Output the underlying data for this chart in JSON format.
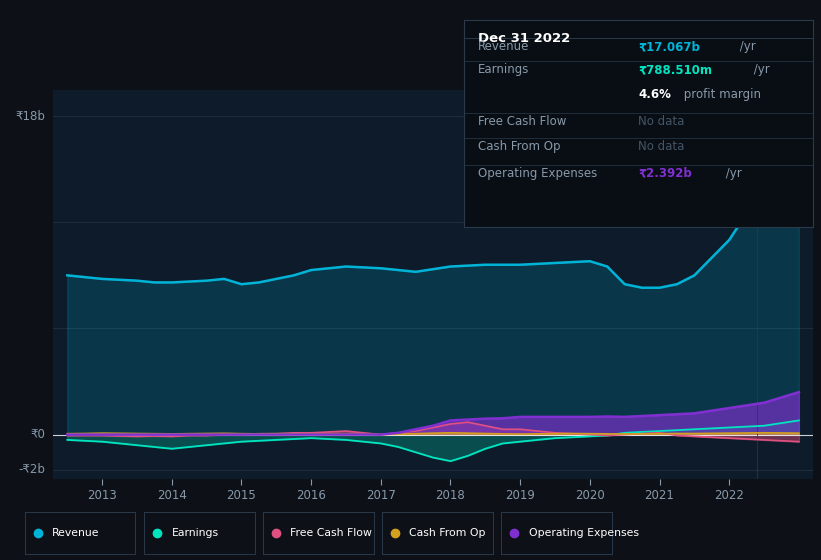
{
  "bg_color": "#0d1117",
  "chart_bg": "#0d1b2a",
  "years_x": [
    2012.5,
    2012.75,
    2013,
    2013.25,
    2013.5,
    2013.75,
    2014,
    2014.25,
    2014.5,
    2014.75,
    2015,
    2015.25,
    2015.5,
    2015.75,
    2016,
    2016.25,
    2016.5,
    2016.75,
    2017,
    2017.25,
    2017.5,
    2017.75,
    2018,
    2018.25,
    2018.5,
    2018.75,
    2019,
    2019.25,
    2019.5,
    2019.75,
    2020,
    2020.25,
    2020.5,
    2020.75,
    2021,
    2021.25,
    2021.5,
    2021.75,
    2022,
    2022.25,
    2022.5,
    2022.75,
    2023.0
  ],
  "revenue": [
    9.0,
    8.9,
    8.8,
    8.75,
    8.7,
    8.6,
    8.6,
    8.65,
    8.7,
    8.8,
    8.5,
    8.6,
    8.8,
    9.0,
    9.3,
    9.4,
    9.5,
    9.45,
    9.4,
    9.3,
    9.2,
    9.35,
    9.5,
    9.55,
    9.6,
    9.6,
    9.6,
    9.65,
    9.7,
    9.75,
    9.8,
    9.5,
    8.5,
    8.3,
    8.3,
    8.5,
    9.0,
    10.0,
    11.0,
    12.5,
    14.0,
    16.0,
    17.2
  ],
  "earnings": [
    -0.3,
    -0.35,
    -0.4,
    -0.5,
    -0.6,
    -0.7,
    -0.8,
    -0.7,
    -0.6,
    -0.5,
    -0.4,
    -0.35,
    -0.3,
    -0.25,
    -0.2,
    -0.25,
    -0.3,
    -0.4,
    -0.5,
    -0.7,
    -1.0,
    -1.3,
    -1.5,
    -1.2,
    -0.8,
    -0.5,
    -0.4,
    -0.3,
    -0.2,
    -0.15,
    -0.1,
    -0.05,
    0.1,
    0.15,
    0.2,
    0.25,
    0.3,
    0.35,
    0.4,
    0.45,
    0.5,
    0.65,
    0.8
  ],
  "free_cash_flow": [
    -0.05,
    -0.05,
    -0.05,
    -0.08,
    -0.1,
    -0.08,
    -0.1,
    -0.05,
    -0.05,
    0.0,
    0.0,
    0.05,
    0.05,
    0.1,
    0.1,
    0.15,
    0.2,
    0.1,
    0.0,
    0.1,
    0.2,
    0.4,
    0.6,
    0.7,
    0.5,
    0.3,
    0.3,
    0.2,
    0.1,
    0.05,
    0.0,
    -0.05,
    0.0,
    0.05,
    0.1,
    -0.05,
    -0.1,
    -0.15,
    -0.2,
    -0.25,
    -0.3,
    -0.35,
    -0.4
  ],
  "cash_from_op": [
    0.05,
    0.06,
    0.08,
    0.07,
    0.06,
    0.05,
    0.04,
    0.05,
    0.06,
    0.07,
    0.05,
    0.04,
    0.05,
    0.04,
    0.03,
    0.03,
    0.02,
    0.02,
    0.0,
    0.02,
    0.05,
    0.08,
    0.1,
    0.08,
    0.06,
    0.04,
    0.03,
    0.04,
    0.05,
    0.06,
    0.05,
    0.04,
    0.03,
    0.04,
    0.05,
    0.06,
    0.06,
    0.07,
    0.08,
    0.09,
    0.1,
    0.09,
    0.08
  ],
  "operating_expenses": [
    0.0,
    0.0,
    0.0,
    0.0,
    0.0,
    0.0,
    0.0,
    0.0,
    0.0,
    0.0,
    0.0,
    0.0,
    0.0,
    0.0,
    0.0,
    0.0,
    0.0,
    0.0,
    0.0,
    0.1,
    0.3,
    0.5,
    0.8,
    0.85,
    0.9,
    0.92,
    1.0,
    1.0,
    1.0,
    1.0,
    1.0,
    1.02,
    1.0,
    1.05,
    1.1,
    1.15,
    1.2,
    1.35,
    1.5,
    1.65,
    1.8,
    2.1,
    2.4
  ],
  "ylim": [
    -2.5,
    19.5
  ],
  "y_label_18": "₹18b",
  "y_label_0": "₹0",
  "y_label_neg2": "-₹2b",
  "revenue_color": "#00b4d8",
  "earnings_color": "#00e5c0",
  "free_cash_flow_color": "#e05080",
  "cash_from_op_color": "#d4a020",
  "operating_expenses_color": "#8030d0",
  "info_box": {
    "date": "Dec 31 2022",
    "revenue_label": "Revenue",
    "revenue_val": "₹17.067b",
    "revenue_unit": " /yr",
    "earnings_label": "Earnings",
    "earnings_val": "₹788.510m",
    "earnings_unit": " /yr",
    "profit_margin_val": "4.6%",
    "profit_margin_text": " profit margin",
    "fcf_label": "Free Cash Flow",
    "fcf_val": "No data",
    "cfo_label": "Cash From Op",
    "cfo_val": "No data",
    "opex_label": "Operating Expenses",
    "opex_val": "₹2.392b",
    "opex_unit": " /yr"
  },
  "legend": [
    {
      "label": "Revenue",
      "color": "#00b4d8"
    },
    {
      "label": "Earnings",
      "color": "#00e5c0"
    },
    {
      "label": "Free Cash Flow",
      "color": "#e05080"
    },
    {
      "label": "Cash From Op",
      "color": "#d4a020"
    },
    {
      "label": "Operating Expenses",
      "color": "#8030d0"
    }
  ],
  "xticks": [
    2013,
    2014,
    2015,
    2016,
    2017,
    2018,
    2019,
    2020,
    2021,
    2022
  ]
}
